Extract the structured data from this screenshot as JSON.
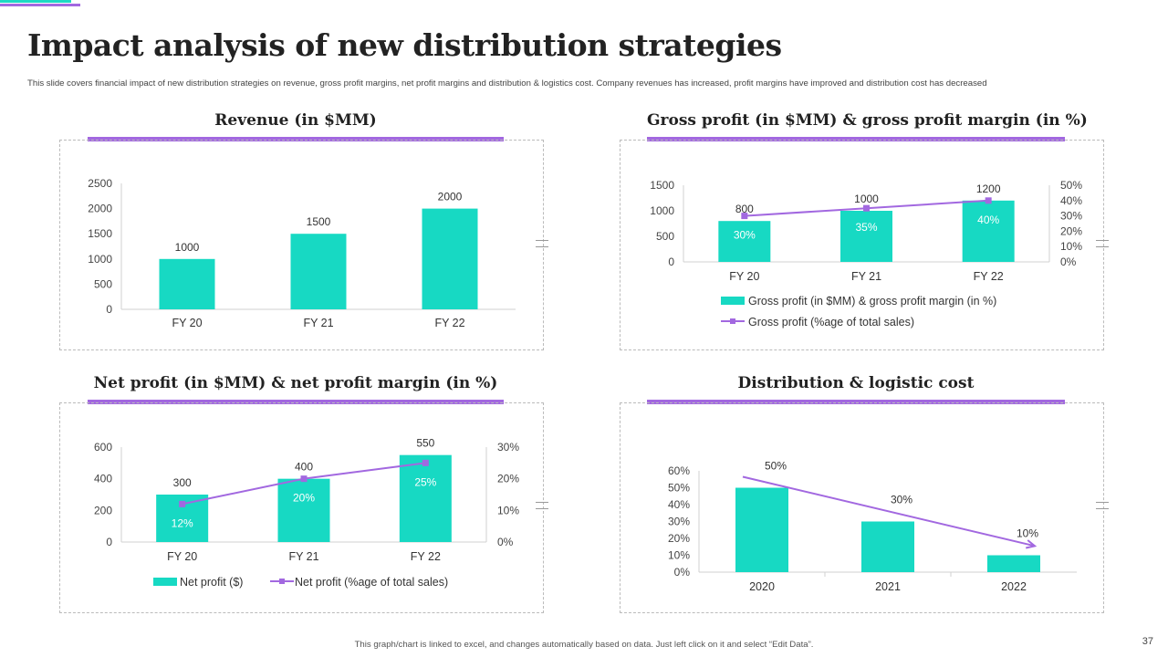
{
  "slide": {
    "title": "Impact analysis of new distribution strategies",
    "subtitle": "This slide covers financial impact of new distribution strategies on revenue, gross profit margins, net profit margins and distribution & logistics cost. Company revenues has increased, profit margins have improved and distribution cost has decreased",
    "footer": "This graph/chart is linked to excel, and changes automatically based on data. Just left click on it and select “Edit Data”.",
    "page_number": "37"
  },
  "colors": {
    "bar": "#17d9c3",
    "line": "#a268e0",
    "accent": "#a268e0"
  },
  "chart_data": [
    {
      "id": "revenue",
      "type": "bar",
      "title": "Revenue (in $MM)",
      "categories": [
        "FY 20",
        "FY 21",
        "FY 22"
      ],
      "values": [
        1000,
        1500,
        2000
      ],
      "ylim": [
        0,
        2500
      ],
      "yticks": [
        0,
        500,
        1000,
        1500,
        2000,
        2500
      ],
      "grid": false
    },
    {
      "id": "gross",
      "type": "bar+line",
      "title": "Gross profit (in $MM) & gross profit margin (in %)",
      "categories": [
        "FY 20",
        "FY 21",
        "FY 22"
      ],
      "series": [
        {
          "name": "Gross profit (in $MM) & gross profit margin (in %)",
          "kind": "bar",
          "values": [
            800,
            1000,
            1200
          ]
        },
        {
          "name": "Gross profit (%age of total sales)",
          "kind": "line",
          "values": [
            30,
            35,
            40
          ],
          "labels": [
            "30%",
            "35%",
            "40%"
          ]
        }
      ],
      "ylim": [
        0,
        1500
      ],
      "yticks": [
        0,
        500,
        1000,
        1500
      ],
      "y2lim": [
        0,
        50
      ],
      "y2ticks": [
        "0%",
        "10%",
        "20%",
        "30%",
        "40%",
        "50%"
      ],
      "legend": "bottom"
    },
    {
      "id": "net",
      "type": "bar+line",
      "title": "Net profit (in $MM) & net profit margin (in %)",
      "categories": [
        "FY 20",
        "FY 21",
        "FY 22"
      ],
      "series": [
        {
          "name": "Net profit ($)",
          "kind": "bar",
          "values": [
            300,
            400,
            550
          ]
        },
        {
          "name": "Net profit (%age of total sales)",
          "kind": "line",
          "values": [
            12,
            20,
            25
          ],
          "labels": [
            "12%",
            "20%",
            "25%"
          ]
        }
      ],
      "ylim": [
        0,
        600
      ],
      "yticks": [
        0,
        200,
        400,
        600
      ],
      "y2lim": [
        0,
        30
      ],
      "y2ticks": [
        "0%",
        "10%",
        "20%",
        "30%"
      ],
      "legend": "bottom"
    },
    {
      "id": "dist",
      "type": "bar",
      "title": "Distribution & logistic cost",
      "categories": [
        "2020",
        "2021",
        "2022"
      ],
      "values": [
        50,
        30,
        10
      ],
      "value_labels": [
        "50%",
        "30%",
        "10%"
      ],
      "ylim": [
        0,
        60
      ],
      "yticks": [
        "0%",
        "10%",
        "20%",
        "30%",
        "40%",
        "50%",
        "60%"
      ],
      "trend_arrow": true
    }
  ]
}
